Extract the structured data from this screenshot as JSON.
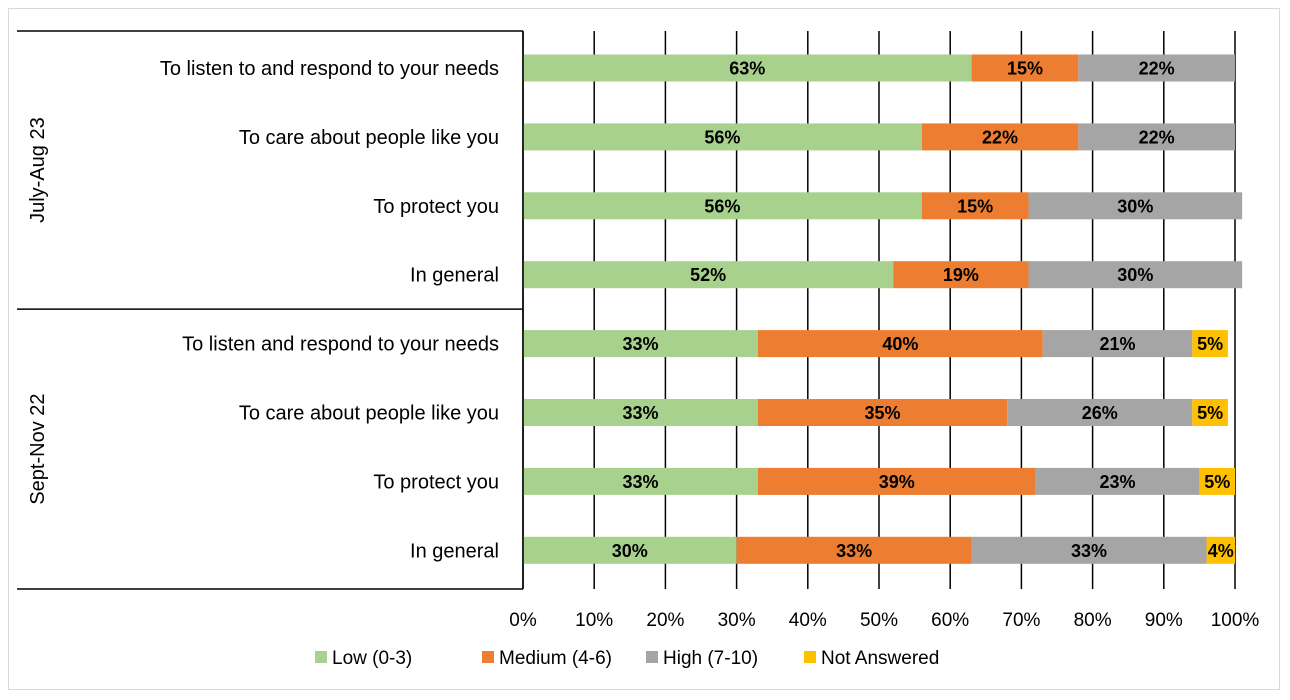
{
  "chart_data": {
    "type": "bar",
    "orientation": "horizontal",
    "stacked": "percent",
    "groups": [
      {
        "name": "July-Aug 23",
        "categories": [
          "To listen to and respond to your needs",
          "To care about people like you",
          "To protect you",
          "In general"
        ]
      },
      {
        "name": "Sept-Nov 22",
        "categories": [
          "To listen and respond to your needs",
          "To care about people like you",
          "To protect you",
          "In general"
        ]
      }
    ],
    "series": [
      {
        "name": "Low (0-3)",
        "color": "#a9d18e",
        "values": [
          63,
          56,
          56,
          52,
          33,
          33,
          33,
          30
        ]
      },
      {
        "name": "Medium (4-6)",
        "color": "#ed7d31",
        "values": [
          15,
          22,
          15,
          19,
          40,
          35,
          39,
          33
        ]
      },
      {
        "name": "High (7-10)",
        "color": "#a5a5a5",
        "values": [
          22,
          22,
          30,
          30,
          21,
          26,
          23,
          33
        ]
      },
      {
        "name": "Not Answered",
        "color": "#ffc000",
        "values": [
          0,
          0,
          0,
          0,
          5,
          5,
          5,
          4
        ]
      }
    ],
    "xlim": [
      0,
      100
    ],
    "xticks": [
      "0%",
      "10%",
      "20%",
      "30%",
      "40%",
      "50%",
      "60%",
      "70%",
      "80%",
      "90%",
      "100%"
    ],
    "grid": true,
    "legend": "bottom",
    "value_suffix": "%"
  }
}
